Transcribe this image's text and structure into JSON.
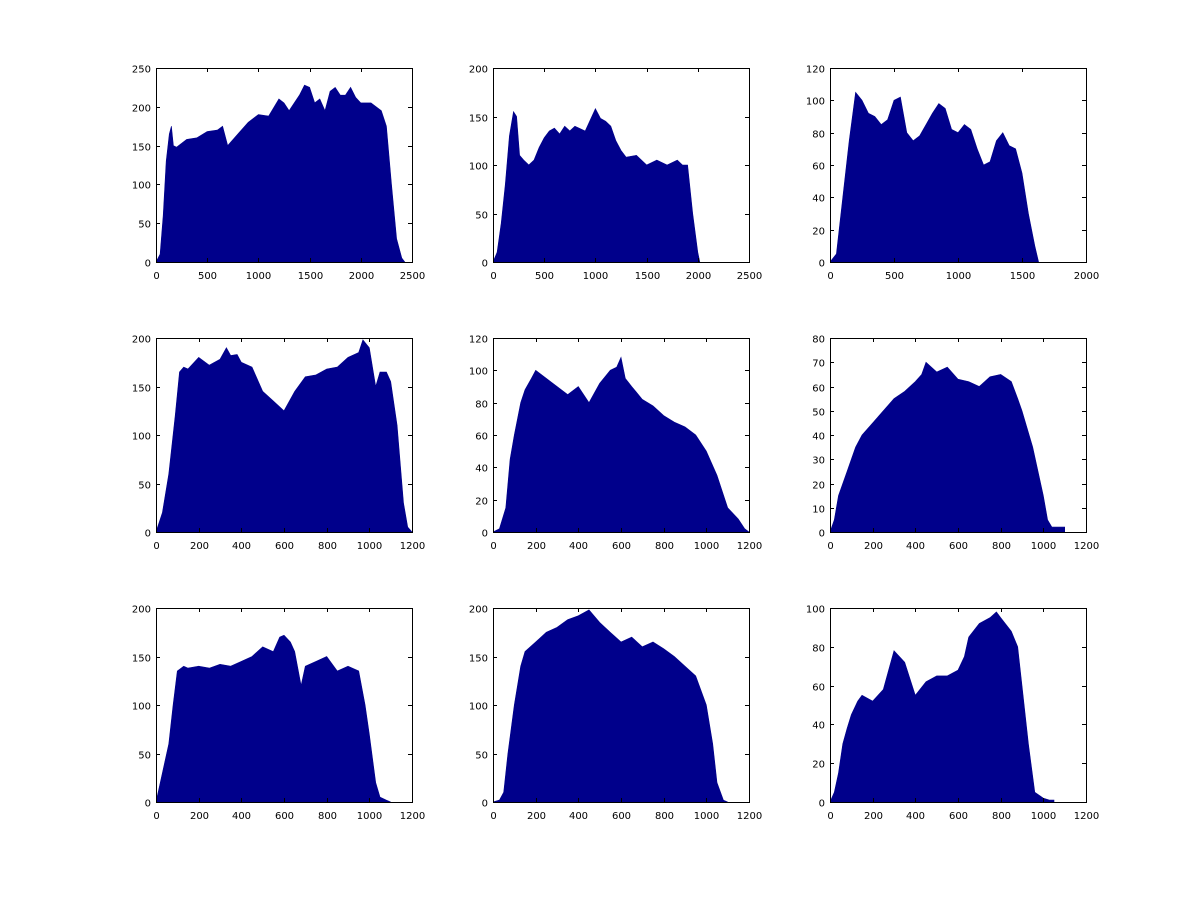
{
  "figure": {
    "background": "#ffffff",
    "fill_color": "#00008b",
    "axis_color": "#000000"
  },
  "chart_data": [
    {
      "type": "area",
      "xlim": [
        0,
        2500
      ],
      "ylim": [
        0,
        250
      ],
      "xticks": [
        0,
        500,
        1000,
        1500,
        2000,
        2500
      ],
      "yticks": [
        0,
        50,
        100,
        150,
        200,
        250
      ],
      "x": [
        0,
        40,
        70,
        100,
        130,
        150,
        170,
        200,
        300,
        400,
        500,
        600,
        650,
        700,
        800,
        900,
        1000,
        1100,
        1200,
        1250,
        1300,
        1400,
        1450,
        1500,
        1550,
        1600,
        1650,
        1700,
        1750,
        1800,
        1850,
        1900,
        1950,
        2000,
        2100,
        2200,
        2250,
        2300,
        2350,
        2400,
        2430
      ],
      "y": [
        0,
        10,
        60,
        130,
        165,
        175,
        150,
        148,
        158,
        160,
        168,
        170,
        175,
        150,
        165,
        180,
        190,
        188,
        210,
        205,
        195,
        215,
        228,
        225,
        205,
        210,
        195,
        220,
        225,
        215,
        215,
        225,
        212,
        205,
        205,
        195,
        175,
        100,
        30,
        5,
        0
      ]
    },
    {
      "type": "area",
      "xlim": [
        0,
        2500
      ],
      "ylim": [
        0,
        200
      ],
      "xticks": [
        0,
        500,
        1000,
        1500,
        2000,
        2500
      ],
      "yticks": [
        0,
        50,
        100,
        150,
        200
      ],
      "x": [
        0,
        40,
        80,
        120,
        160,
        200,
        230,
        260,
        300,
        350,
        400,
        450,
        500,
        550,
        600,
        650,
        700,
        750,
        800,
        900,
        1000,
        1050,
        1100,
        1150,
        1200,
        1250,
        1300,
        1400,
        1500,
        1600,
        1700,
        1800,
        1850,
        1900,
        1950,
        2000,
        2020
      ],
      "y": [
        0,
        10,
        40,
        80,
        130,
        155,
        150,
        110,
        105,
        100,
        105,
        118,
        128,
        135,
        138,
        132,
        140,
        135,
        140,
        135,
        158,
        148,
        145,
        140,
        125,
        115,
        108,
        110,
        100,
        105,
        100,
        105,
        100,
        100,
        50,
        10,
        0
      ]
    },
    {
      "type": "area",
      "xlim": [
        0,
        2000
      ],
      "ylim": [
        0,
        120
      ],
      "xticks": [
        0,
        500,
        1000,
        1500,
        2000
      ],
      "yticks": [
        0,
        20,
        40,
        60,
        80,
        100,
        120
      ],
      "x": [
        0,
        50,
        100,
        150,
        200,
        250,
        300,
        350,
        400,
        450,
        500,
        550,
        600,
        650,
        700,
        750,
        800,
        850,
        900,
        950,
        1000,
        1050,
        1100,
        1150,
        1200,
        1250,
        1300,
        1350,
        1400,
        1450,
        1500,
        1550,
        1600,
        1630
      ],
      "y": [
        0,
        5,
        40,
        75,
        105,
        100,
        92,
        90,
        85,
        88,
        100,
        102,
        80,
        75,
        78,
        85,
        92,
        98,
        95,
        82,
        80,
        85,
        82,
        70,
        60,
        62,
        75,
        80,
        72,
        70,
        55,
        30,
        10,
        0
      ]
    },
    {
      "type": "area",
      "xlim": [
        0,
        1200
      ],
      "ylim": [
        0,
        200
      ],
      "xticks": [
        0,
        200,
        400,
        600,
        800,
        1000,
        1200
      ],
      "yticks": [
        0,
        50,
        100,
        150,
        200
      ],
      "x": [
        0,
        30,
        60,
        90,
        110,
        130,
        150,
        200,
        250,
        300,
        330,
        350,
        380,
        400,
        450,
        500,
        550,
        600,
        650,
        700,
        750,
        800,
        850,
        900,
        950,
        970,
        1000,
        1030,
        1050,
        1080,
        1100,
        1130,
        1160,
        1180,
        1200
      ],
      "y": [
        0,
        20,
        60,
        120,
        165,
        170,
        168,
        180,
        172,
        178,
        190,
        182,
        183,
        175,
        170,
        145,
        135,
        125,
        145,
        160,
        162,
        168,
        170,
        180,
        185,
        198,
        190,
        150,
        165,
        165,
        155,
        110,
        30,
        5,
        0
      ]
    },
    {
      "type": "area",
      "xlim": [
        0,
        1200
      ],
      "ylim": [
        0,
        120
      ],
      "xticks": [
        0,
        200,
        400,
        600,
        800,
        1000,
        1200
      ],
      "yticks": [
        0,
        20,
        40,
        60,
        80,
        100,
        120
      ],
      "x": [
        0,
        30,
        60,
        80,
        100,
        130,
        150,
        180,
        200,
        250,
        300,
        350,
        400,
        450,
        500,
        550,
        580,
        600,
        620,
        650,
        700,
        750,
        800,
        850,
        900,
        950,
        1000,
        1050,
        1100,
        1150,
        1180,
        1200
      ],
      "y": [
        0,
        2,
        15,
        45,
        60,
        80,
        88,
        95,
        100,
        95,
        90,
        85,
        90,
        80,
        92,
        100,
        102,
        108,
        95,
        90,
        82,
        78,
        72,
        68,
        65,
        60,
        50,
        35,
        15,
        8,
        2,
        0
      ]
    },
    {
      "type": "area",
      "xlim": [
        0,
        1200
      ],
      "ylim": [
        0,
        80
      ],
      "xticks": [
        0,
        200,
        400,
        600,
        800,
        1000,
        1200
      ],
      "yticks": [
        0,
        10,
        20,
        30,
        40,
        50,
        60,
        70,
        80
      ],
      "x": [
        0,
        20,
        40,
        60,
        80,
        100,
        120,
        150,
        200,
        250,
        300,
        350,
        400,
        430,
        450,
        500,
        550,
        600,
        650,
        700,
        750,
        800,
        850,
        880,
        900,
        950,
        1000,
        1020,
        1040,
        1100
      ],
      "y": [
        0,
        5,
        15,
        20,
        25,
        30,
        35,
        40,
        45,
        50,
        55,
        58,
        62,
        65,
        70,
        66,
        68,
        63,
        62,
        60,
        64,
        65,
        62,
        55,
        50,
        35,
        15,
        5,
        2,
        2
      ]
    },
    {
      "type": "area",
      "xlim": [
        0,
        1200
      ],
      "ylim": [
        0,
        200
      ],
      "xticks": [
        0,
        200,
        400,
        600,
        800,
        1000,
        1200
      ],
      "yticks": [
        0,
        50,
        100,
        150,
        200
      ],
      "x": [
        0,
        30,
        60,
        80,
        100,
        130,
        150,
        200,
        250,
        300,
        350,
        400,
        450,
        500,
        550,
        580,
        600,
        630,
        650,
        680,
        700,
        750,
        800,
        850,
        900,
        950,
        980,
        1000,
        1030,
        1050,
        1080,
        1100
      ],
      "y": [
        0,
        30,
        60,
        100,
        135,
        140,
        138,
        140,
        138,
        142,
        140,
        145,
        150,
        160,
        155,
        170,
        172,
        165,
        155,
        120,
        140,
        145,
        150,
        135,
        140,
        135,
        100,
        70,
        20,
        5,
        2,
        0
      ]
    },
    {
      "type": "area",
      "xlim": [
        0,
        1200
      ],
      "ylim": [
        0,
        200
      ],
      "xticks": [
        0,
        200,
        400,
        600,
        800,
        1000,
        1200
      ],
      "yticks": [
        0,
        50,
        100,
        150,
        200
      ],
      "x": [
        0,
        30,
        50,
        70,
        100,
        130,
        150,
        200,
        250,
        300,
        350,
        400,
        450,
        500,
        550,
        600,
        650,
        700,
        750,
        800,
        850,
        900,
        950,
        1000,
        1030,
        1050,
        1080,
        1100
      ],
      "y": [
        0,
        2,
        10,
        50,
        100,
        140,
        155,
        165,
        175,
        180,
        188,
        192,
        198,
        185,
        175,
        165,
        170,
        160,
        165,
        158,
        150,
        140,
        130,
        100,
        60,
        20,
        2,
        0
      ]
    },
    {
      "type": "area",
      "xlim": [
        0,
        1200
      ],
      "ylim": [
        0,
        100
      ],
      "xticks": [
        0,
        200,
        400,
        600,
        800,
        1000,
        1200
      ],
      "yticks": [
        0,
        20,
        40,
        60,
        80,
        100
      ],
      "x": [
        0,
        20,
        40,
        60,
        80,
        100,
        130,
        150,
        200,
        250,
        280,
        300,
        350,
        400,
        450,
        500,
        550,
        600,
        630,
        650,
        700,
        750,
        780,
        800,
        850,
        880,
        900,
        930,
        960,
        1000,
        1030,
        1050
      ],
      "y": [
        0,
        5,
        15,
        30,
        38,
        45,
        52,
        55,
        52,
        58,
        70,
        78,
        72,
        55,
        62,
        65,
        65,
        68,
        75,
        85,
        92,
        95,
        98,
        95,
        88,
        80,
        60,
        30,
        5,
        2,
        1,
        1
      ]
    }
  ]
}
